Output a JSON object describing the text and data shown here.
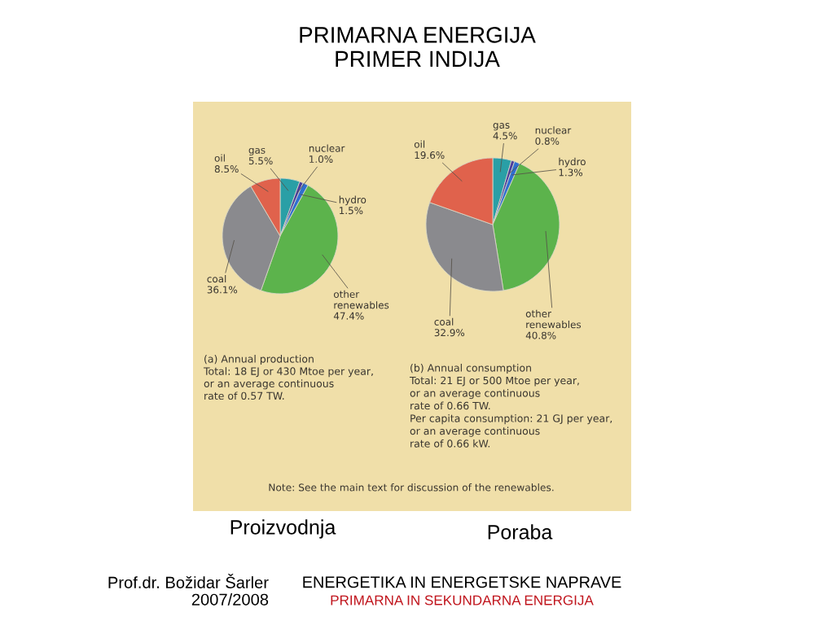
{
  "chart_data": [
    {
      "type": "pie",
      "title": "PRIMARNA ENERGIJA\nPRIMER INDIJA",
      "categories": [
        "gas",
        "nuclear",
        "hydro",
        "other\nrenewables",
        "coal",
        "oil"
      ],
      "values": [
        5.5,
        1.0,
        1.5,
        47.4,
        36.1,
        8.5
      ],
      "value_labels": [
        "5.5%",
        "1.0%",
        "1.5%",
        "47.4%",
        "36.1%",
        "8.5%"
      ],
      "colors": [
        "#2a9fa6",
        "#4b3d9e",
        "#2f6fd0",
        "#5cb34c",
        "#8a8a8e",
        "#e0624c"
      ],
      "annotations": [
        "(a) Annual production\nTotal: 18 EJ or 430 Mtoe per year,\nor an average continuous\nrate of 0.57 TW.",
        "Proizvodnja",
        "Prof.dr. Božidar Šarler\n2007/2008",
        "ENERGETIKA IN ENERGETSKE NAPRAVE",
        "PRIMARNA IN SEKUNDARNA ENERGIJA"
      ]
    },
    {
      "type": "pie",
      "categories": [
        "gas",
        "nuclear",
        "hydro",
        "other\nrenewables",
        "coal",
        "oil"
      ],
      "values": [
        4.5,
        0.8,
        1.3,
        40.8,
        32.9,
        19.6
      ],
      "value_labels": [
        "4.5%",
        "0.8%",
        "1.3%",
        "40.8%",
        "32.9%",
        "19.6%"
      ],
      "colors": [
        "#2a9fa6",
        "#4b3d9e",
        "#2f6fd0",
        "#5cb34c",
        "#8a8a8e",
        "#e0624c"
      ],
      "annotations": [
        "(b) Annual consumption\nTotal: 21 EJ or 500 Mtoe per year,\nor an average continuous\nrate of 0.66 TW.\nPer capita consumption: 21 GJ per year,\nor an average continuous\nrate of 0.66 kW.",
        "Note: See the main text for discussion of the renewables.",
        "Poraba"
      ]
    }
  ]
}
